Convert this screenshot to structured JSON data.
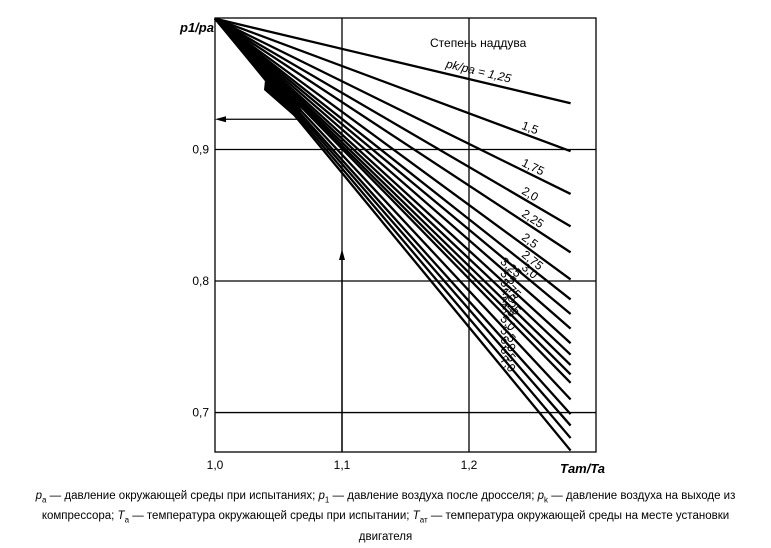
{
  "chart_data": {
    "type": "line",
    "title": "",
    "legend_title": "Степень наддува",
    "legend_ratio_prefix": "pk/pa =",
    "xlabel": "Tат/Ta",
    "ylabel": "p1/pa",
    "xlim": [
      1.0,
      1.3
    ],
    "ylim": [
      0.67,
      1.0
    ],
    "xticks": [
      "1,0",
      "1,1",
      "1,2"
    ],
    "yticks": [
      "0,7",
      "0,8",
      "0,9"
    ],
    "xtick_values": [
      1.0,
      1.1,
      1.2
    ],
    "ytick_values": [
      0.7,
      0.8,
      0.9
    ],
    "grid": true,
    "series": [
      {
        "name": "1,25",
        "x": [
          1.0,
          1.28
        ],
        "y": [
          0.9995,
          0.9352
        ]
      },
      {
        "name": "1,5",
        "x": [
          1.0,
          1.28
        ],
        "y": [
          0.9995,
          0.8987
        ]
      },
      {
        "name": "1,75",
        "x": [
          1.0,
          1.28
        ],
        "y": [
          0.9995,
          0.8662
        ]
      },
      {
        "name": "2,0",
        "x": [
          1.0,
          1.28
        ],
        "y": [
          0.9995,
          0.8416
        ]
      },
      {
        "name": "2,25",
        "x": [
          1.0,
          1.28
        ],
        "y": [
          0.9995,
          0.8218
        ]
      },
      {
        "name": "2,5",
        "x": [
          1.0,
          1.28
        ],
        "y": [
          0.9995,
          0.8012
        ]
      },
      {
        "name": "2,75",
        "x": [
          1.0,
          1.28
        ],
        "y": [
          0.9995,
          0.786
        ]
      },
      {
        "name": "3,0",
        "x": [
          1.0,
          1.28
        ],
        "y": [
          0.9995,
          0.7749
        ]
      },
      {
        "name": "3,25",
        "x": [
          1.0,
          1.28
        ],
        "y": [
          0.9995,
          0.7638
        ]
      },
      {
        "name": "3,5",
        "x": [
          1.0,
          1.28
        ],
        "y": [
          0.9995,
          0.7527
        ]
      },
      {
        "name": "3,75",
        "x": [
          1.0,
          1.28
        ],
        "y": [
          0.9995,
          0.744
        ]
      },
      {
        "name": "4,0",
        "x": [
          1.0,
          1.28
        ],
        "y": [
          0.9995,
          0.7361
        ]
      },
      {
        "name": "4,25",
        "x": [
          1.0,
          1.28
        ],
        "y": [
          0.9995,
          0.729
        ]
      },
      {
        "name": "4,5",
        "x": [
          1.0,
          1.28
        ],
        "y": [
          0.9995,
          0.7226
        ]
      },
      {
        "name": "5,0",
        "x": [
          1.0,
          1.28
        ],
        "y": [
          0.9995,
          0.7099
        ]
      },
      {
        "name": "5,5",
        "x": [
          1.0,
          1.28
        ],
        "y": [
          0.9995,
          0.6988
        ]
      },
      {
        "name": "6,0",
        "x": [
          1.0,
          1.28
        ],
        "y": [
          0.9995,
          0.6901
        ]
      },
      {
        "name": "6,5",
        "x": [
          1.0,
          1.28
        ],
        "y": [
          0.9995,
          0.6806
        ]
      },
      {
        "name": "7,0",
        "x": [
          1.0,
          1.28
        ],
        "y": [
          0.9995,
          0.6711
        ]
      }
    ],
    "annotation": {
      "example_x": 1.1,
      "example_y": 0.923,
      "example_curve": "2,0"
    }
  },
  "caption": {
    "line1_a": "p",
    "line1_a_sub": "a",
    "line1_b": " — давление окружающей среды при испытаниях; ",
    "line1_c": "p",
    "line1_c_sub": "1",
    "line1_d": " — давление воздуха после дросселя; ",
    "line1_e": "p",
    "line1_e_sub": "k",
    "line1_f": " — давление воздуха на выходе из",
    "line2_a": "компрессора; ",
    "line2_b": "T",
    "line2_b_sub": "a",
    "line2_c": " — температура окружающей среды при испытании; ",
    "line2_d": "T",
    "line2_d_sub": "ат",
    "line2_e": " — температура окружающей среды на месте установки",
    "line3": "двигателя"
  }
}
